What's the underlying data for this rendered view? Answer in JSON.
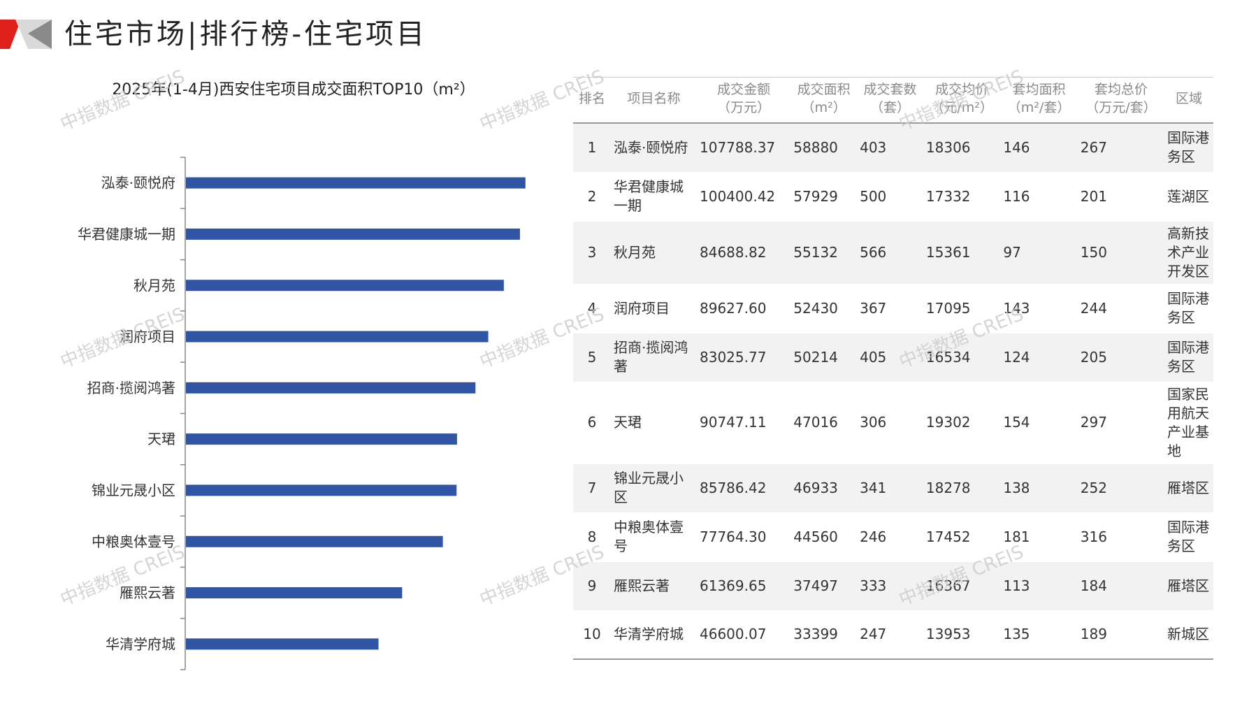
{
  "page_title": "住宅市场|排行榜-住宅项目",
  "watermark": "中指数据 CREIS",
  "colors": {
    "bar": "#2F55A4",
    "logo_red": "#E0201A",
    "logo_gray": "#8A8A8A"
  },
  "chart_data": {
    "type": "bar",
    "orientation": "horizontal",
    "title": "2025年(1-4月)西安住宅项目成交面积TOP10（m²）",
    "categories": [
      "泓泰·颐悦府",
      "华君健康城一期",
      "秋月苑",
      "润府项目",
      "招商·揽阅鸿著",
      "天珺",
      "锦业元晟小区",
      "中粮奥体壹号",
      "雁熙云著",
      "华清学府城"
    ],
    "values": [
      58880,
      57929,
      55132,
      52430,
      50214,
      47016,
      46933,
      44560,
      37497,
      33399
    ],
    "xlim": [
      0,
      60000
    ],
    "grid": false,
    "legend": "none"
  },
  "table": {
    "headers": [
      {
        "l1": "排名",
        "l2": ""
      },
      {
        "l1": "项目名称",
        "l2": ""
      },
      {
        "l1": "成交金额",
        "l2": "（万元）"
      },
      {
        "l1": "成交面积",
        "l2": "（m²）"
      },
      {
        "l1": "成交套数",
        "l2": "（套）"
      },
      {
        "l1": "成交均价",
        "l2": "（元/m²）"
      },
      {
        "l1": "套均面积",
        "l2": "（m²/套）"
      },
      {
        "l1": "套均总价",
        "l2": "（万元/套）"
      },
      {
        "l1": "区域",
        "l2": ""
      }
    ],
    "rows": [
      {
        "rank": "1",
        "name": "泓泰·颐悦府",
        "amount": "107788.37",
        "area": "58880",
        "units": "403",
        "price": "18306",
        "avg_area": "146",
        "avg_total": "267",
        "district": "国际港务区"
      },
      {
        "rank": "2",
        "name": "华君健康城一期",
        "amount": "100400.42",
        "area": "57929",
        "units": "500",
        "price": "17332",
        "avg_area": "116",
        "avg_total": "201",
        "district": "莲湖区"
      },
      {
        "rank": "3",
        "name": "秋月苑",
        "amount": "84688.82",
        "area": "55132",
        "units": "566",
        "price": "15361",
        "avg_area": "97",
        "avg_total": "150",
        "district": "高新技术产业开发区"
      },
      {
        "rank": "4",
        "name": "润府项目",
        "amount": "89627.60",
        "area": "52430",
        "units": "367",
        "price": "17095",
        "avg_area": "143",
        "avg_total": "244",
        "district": "国际港务区"
      },
      {
        "rank": "5",
        "name": "招商·揽阅鸿著",
        "amount": "83025.77",
        "area": "50214",
        "units": "405",
        "price": "16534",
        "avg_area": "124",
        "avg_total": "205",
        "district": "国际港务区"
      },
      {
        "rank": "6",
        "name": "天珺",
        "amount": "90747.11",
        "area": "47016",
        "units": "306",
        "price": "19302",
        "avg_area": "154",
        "avg_total": "297",
        "district": "国家民用航天产业基地"
      },
      {
        "rank": "7",
        "name": "锦业元晟小区",
        "amount": "85786.42",
        "area": "46933",
        "units": "341",
        "price": "18278",
        "avg_area": "138",
        "avg_total": "252",
        "district": "雁塔区"
      },
      {
        "rank": "8",
        "name": "中粮奥体壹号",
        "amount": "77764.30",
        "area": "44560",
        "units": "246",
        "price": "17452",
        "avg_area": "181",
        "avg_total": "316",
        "district": "国际港务区"
      },
      {
        "rank": "9",
        "name": "雁熙云著",
        "amount": "61369.65",
        "area": "37497",
        "units": "333",
        "price": "16367",
        "avg_area": "113",
        "avg_total": "184",
        "district": "雁塔区"
      },
      {
        "rank": "10",
        "name": "华清学府城",
        "amount": "46600.07",
        "area": "33399",
        "units": "247",
        "price": "13953",
        "avg_area": "135",
        "avg_total": "189",
        "district": "新城区"
      }
    ]
  }
}
